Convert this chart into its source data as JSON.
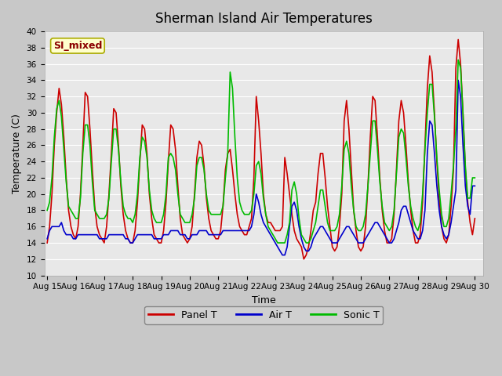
{
  "title": "Sherman Island Air Temperatures",
  "xlabel": "Time",
  "ylabel": "Temperature (C)",
  "ylim": [
    10,
    40
  ],
  "x_tick_labels": [
    "Aug 15",
    "Aug 16",
    "Aug 17",
    "Aug 18",
    "Aug 19",
    "Aug 20",
    "Aug 21",
    "Aug 22",
    "Aug 23",
    "Aug 24",
    "Aug 25",
    "Aug 26",
    "Aug 27",
    "Aug 28",
    "Aug 29",
    "Aug 30"
  ],
  "annotation_text": "SI_mixed",
  "annotation_color": "#8B0000",
  "annotation_bg": "#FFFFCC",
  "annotation_border": "#AAAA00",
  "panel_T_color": "#CC0000",
  "air_T_color": "#0000CC",
  "sonic_T_color": "#00BB00",
  "background_color": "#E8E8E8",
  "grid_color": "#FFFFFF",
  "fig_facecolor": "#C8C8C8",
  "legend_items": [
    "Panel T",
    "Air T",
    "Sonic T"
  ],
  "title_fontsize": 12,
  "axis_label_fontsize": 9,
  "tick_fontsize": 7.5,
  "legend_fontsize": 9,
  "line_width": 1.2,
  "panel_T": [
    14.0,
    16.0,
    20.0,
    26.0,
    30.0,
    33.0,
    31.0,
    27.0,
    22.0,
    18.0,
    16.0,
    15.0,
    14.5,
    16.0,
    20.0,
    26.0,
    32.5,
    32.0,
    28.0,
    23.0,
    18.5,
    16.0,
    15.0,
    14.5,
    14.0,
    16.0,
    20.0,
    25.0,
    30.5,
    30.0,
    26.0,
    21.0,
    17.5,
    15.5,
    14.5,
    14.0,
    14.0,
    15.5,
    19.0,
    24.0,
    28.5,
    28.0,
    25.0,
    20.0,
    17.0,
    15.0,
    14.5,
    14.0,
    14.0,
    15.5,
    19.0,
    24.0,
    28.5,
    28.0,
    25.5,
    21.0,
    17.0,
    15.0,
    14.5,
    14.0,
    14.5,
    16.0,
    20.0,
    24.5,
    26.5,
    26.0,
    23.5,
    19.5,
    17.0,
    15.5,
    15.0,
    14.5,
    14.5,
    15.5,
    18.5,
    23.0,
    25.0,
    25.5,
    23.0,
    20.0,
    17.5,
    16.0,
    15.5,
    15.0,
    15.0,
    16.0,
    17.0,
    22.0,
    32.0,
    29.0,
    25.0,
    20.0,
    17.5,
    16.5,
    16.5,
    16.0,
    15.5,
    15.5,
    15.5,
    16.0,
    24.5,
    22.5,
    20.0,
    17.5,
    15.5,
    14.5,
    14.0,
    13.5,
    12.0,
    12.5,
    13.5,
    15.5,
    18.0,
    19.0,
    22.5,
    25.0,
    25.0,
    22.0,
    18.5,
    16.0,
    13.5,
    13.0,
    13.5,
    16.0,
    20.0,
    29.0,
    31.5,
    28.0,
    23.0,
    18.0,
    15.5,
    13.5,
    13.0,
    13.5,
    16.0,
    21.0,
    27.0,
    32.0,
    31.5,
    27.0,
    22.0,
    18.0,
    15.5,
    14.0,
    14.0,
    14.5,
    17.5,
    23.0,
    29.0,
    31.5,
    30.0,
    26.0,
    21.5,
    18.0,
    15.5,
    14.0,
    14.0,
    15.0,
    19.0,
    26.0,
    33.0,
    37.0,
    35.0,
    30.0,
    24.0,
    19.5,
    16.0,
    14.5,
    14.0,
    15.0,
    18.5,
    23.0,
    35.5,
    39.0,
    36.0,
    30.0,
    23.0,
    19.0,
    16.5,
    15.0,
    17.0
  ],
  "air_T": [
    14.5,
    15.5,
    16.0,
    16.0,
    16.0,
    16.0,
    16.5,
    15.5,
    15.0,
    15.0,
    15.0,
    14.5,
    14.5,
    15.0,
    15.0,
    15.0,
    15.0,
    15.0,
    15.0,
    15.0,
    15.0,
    15.0,
    14.5,
    14.5,
    14.5,
    14.5,
    15.0,
    15.0,
    15.0,
    15.0,
    15.0,
    15.0,
    15.0,
    14.5,
    14.5,
    14.0,
    14.0,
    14.5,
    15.0,
    15.0,
    15.0,
    15.0,
    15.0,
    15.0,
    15.0,
    14.5,
    14.5,
    14.5,
    14.5,
    15.0,
    15.0,
    15.0,
    15.5,
    15.5,
    15.5,
    15.5,
    15.0,
    15.0,
    15.0,
    14.5,
    14.5,
    15.0,
    15.0,
    15.0,
    15.5,
    15.5,
    15.5,
    15.5,
    15.0,
    15.0,
    15.0,
    15.0,
    15.0,
    15.0,
    15.5,
    15.5,
    15.5,
    15.5,
    15.5,
    15.5,
    15.5,
    15.5,
    15.5,
    15.5,
    15.5,
    15.5,
    16.0,
    17.5,
    20.0,
    19.0,
    17.5,
    16.5,
    16.0,
    15.5,
    15.0,
    14.5,
    14.0,
    13.5,
    13.0,
    12.5,
    12.5,
    13.5,
    16.0,
    18.5,
    19.0,
    18.0,
    16.0,
    14.5,
    13.5,
    13.0,
    13.0,
    13.5,
    14.5,
    15.0,
    15.5,
    16.0,
    16.0,
    15.5,
    15.0,
    14.5,
    14.0,
    14.0,
    14.0,
    14.5,
    15.0,
    15.5,
    16.0,
    16.0,
    15.5,
    15.0,
    14.5,
    14.0,
    14.0,
    14.0,
    14.5,
    15.0,
    15.5,
    16.0,
    16.5,
    16.5,
    16.0,
    15.5,
    15.0,
    14.5,
    14.0,
    14.0,
    14.5,
    15.5,
    16.5,
    18.0,
    18.5,
    18.5,
    17.5,
    16.5,
    15.5,
    15.0,
    14.5,
    14.5,
    15.5,
    18.0,
    25.0,
    29.0,
    28.5,
    25.0,
    21.0,
    18.0,
    16.0,
    15.0,
    14.5,
    15.0,
    16.5,
    18.5,
    20.5,
    34.0,
    32.0,
    26.0,
    21.0,
    18.5,
    17.5,
    21.0,
    21.0
  ],
  "sonic_T": [
    18.0,
    19.0,
    22.0,
    27.0,
    30.5,
    31.5,
    29.5,
    25.5,
    21.5,
    18.5,
    18.0,
    17.5,
    17.0,
    17.0,
    19.5,
    25.0,
    28.5,
    28.5,
    26.0,
    21.5,
    18.0,
    17.5,
    17.0,
    17.0,
    17.0,
    17.5,
    19.5,
    24.0,
    28.0,
    28.0,
    25.5,
    21.5,
    18.5,
    17.5,
    17.0,
    17.0,
    16.5,
    17.5,
    20.0,
    24.5,
    27.0,
    26.5,
    24.5,
    20.5,
    18.0,
    17.0,
    16.5,
    16.5,
    16.5,
    17.5,
    20.0,
    24.5,
    25.0,
    24.5,
    23.0,
    20.0,
    17.5,
    17.0,
    16.5,
    16.5,
    16.5,
    17.5,
    19.5,
    23.5,
    24.5,
    24.5,
    23.0,
    20.0,
    18.0,
    17.5,
    17.5,
    17.5,
    17.5,
    17.5,
    18.5,
    22.0,
    25.0,
    35.0,
    33.0,
    27.0,
    22.0,
    19.0,
    18.0,
    17.5,
    17.5,
    17.5,
    18.0,
    20.0,
    23.5,
    24.0,
    22.5,
    19.5,
    17.5,
    16.0,
    15.5,
    15.0,
    14.5,
    14.0,
    14.0,
    14.0,
    14.0,
    15.0,
    16.5,
    20.5,
    21.5,
    20.0,
    17.0,
    15.0,
    14.5,
    14.0,
    14.0,
    14.5,
    15.5,
    16.5,
    18.5,
    20.5,
    20.5,
    18.5,
    16.5,
    15.5,
    15.5,
    15.5,
    16.0,
    17.5,
    21.0,
    25.5,
    26.5,
    25.0,
    21.0,
    18.0,
    16.0,
    15.5,
    15.5,
    16.0,
    17.5,
    21.0,
    25.0,
    29.0,
    29.0,
    25.5,
    21.5,
    18.5,
    16.5,
    16.0,
    15.5,
    16.0,
    18.0,
    22.5,
    27.0,
    28.0,
    27.5,
    24.5,
    21.0,
    18.5,
    17.0,
    16.0,
    15.5,
    16.5,
    20.0,
    25.5,
    30.0,
    33.5,
    33.5,
    29.5,
    24.5,
    20.5,
    17.5,
    16.0,
    16.0,
    17.0,
    20.0,
    23.5,
    28.0,
    36.5,
    35.5,
    30.0,
    23.5,
    19.5,
    19.5,
    22.0,
    22.0
  ]
}
